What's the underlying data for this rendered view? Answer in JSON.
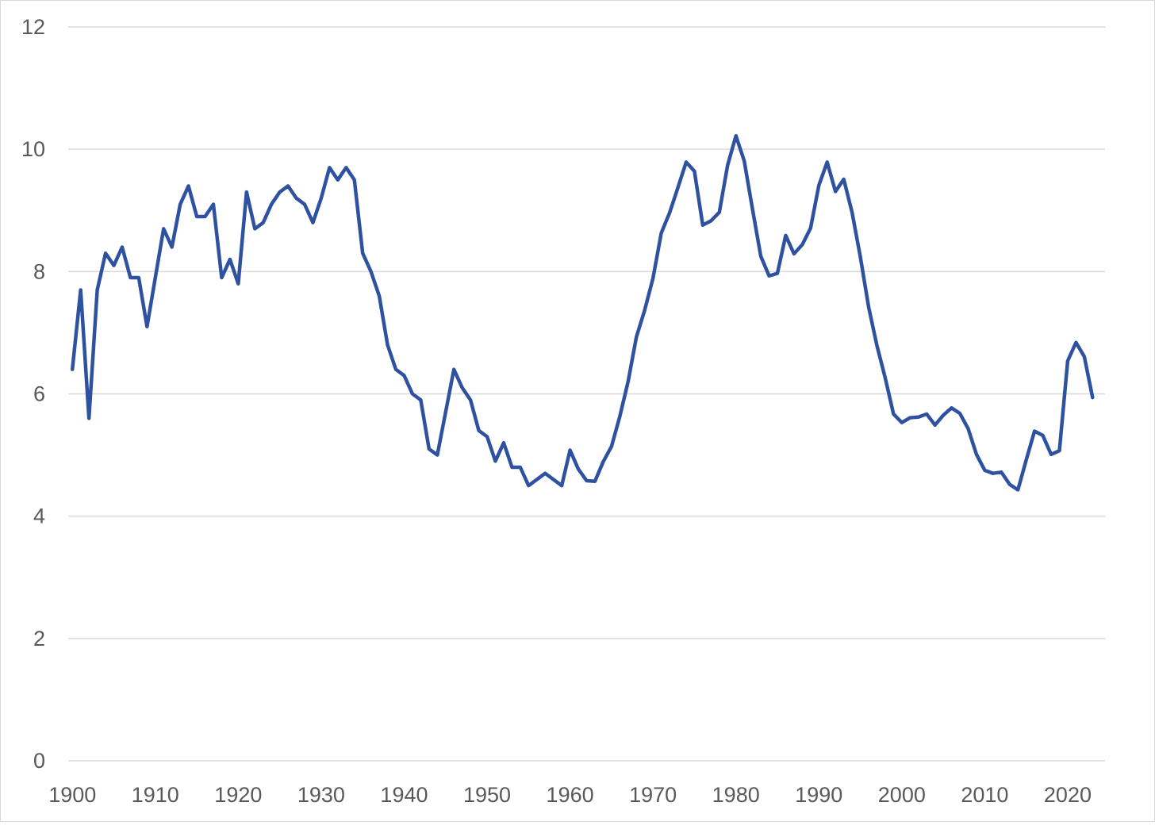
{
  "chart_data": {
    "type": "line",
    "title": "",
    "xlabel": "",
    "ylabel": "",
    "xlim": [
      1899.5,
      2024.5
    ],
    "ylim": [
      0,
      12
    ],
    "x_ticks": [
      "1900",
      "1910",
      "1920",
      "1930",
      "1940",
      "1950",
      "1960",
      "1970",
      "1980",
      "1990",
      "2000",
      "2010",
      "2020"
    ],
    "y_ticks": [
      "0",
      "2",
      "4",
      "6",
      "8",
      "10",
      "12"
    ],
    "grid": "horizontal",
    "legend": "none",
    "line_color": "#2f52a0",
    "gridline_color": "#d9d9d9",
    "series": [
      {
        "x": [
          1900,
          1901,
          1902,
          1903,
          1904,
          1905,
          1906,
          1907,
          1908,
          1909,
          1910,
          1911,
          1912,
          1913,
          1914,
          1915,
          1916,
          1917,
          1918,
          1919,
          1920,
          1921,
          1922,
          1923,
          1924,
          1925,
          1926,
          1927,
          1928,
          1929,
          1930,
          1931,
          1932,
          1933,
          1934,
          1935,
          1936,
          1937,
          1938,
          1939,
          1940,
          1941,
          1942,
          1943,
          1944,
          1945,
          1946,
          1947,
          1948,
          1949,
          1950,
          1951,
          1952,
          1953,
          1954,
          1955,
          1956,
          1957,
          1958,
          1959,
          1960,
          1961,
          1962,
          1963,
          1964,
          1965,
          1966,
          1967,
          1968,
          1969,
          1970,
          1971,
          1972,
          1973,
          1974,
          1975,
          1976,
          1977,
          1978,
          1979,
          1980,
          1981,
          1982,
          1983,
          1984,
          1985,
          1986,
          1987,
          1988,
          1989,
          1990,
          1991,
          1992,
          1993,
          1994,
          1995,
          1996,
          1997,
          1998,
          1999,
          2000,
          2001,
          2002,
          2003,
          2004,
          2005,
          2006,
          2007,
          2008,
          2009,
          2010,
          2011,
          2012,
          2013,
          2014,
          2015,
          2016,
          2017,
          2018,
          2019,
          2020,
          2021,
          2022,
          2023
        ],
        "values": [
          6.4,
          7.7,
          5.6,
          7.7,
          8.3,
          8.1,
          8.4,
          7.9,
          7.9,
          7.1,
          7.9,
          8.7,
          8.4,
          9.1,
          9.4,
          8.9,
          8.9,
          9.1,
          7.9,
          8.2,
          7.8,
          9.3,
          8.7,
          8.8,
          9.1,
          9.3,
          9.4,
          9.2,
          9.1,
          8.8,
          9.2,
          9.7,
          9.5,
          9.7,
          9.5,
          8.3,
          8.0,
          7.6,
          6.8,
          6.4,
          6.3,
          6.0,
          5.9,
          5.1,
          5.0,
          5.7,
          6.4,
          6.1,
          5.9,
          5.4,
          5.3,
          4.9,
          5.2,
          4.8,
          4.8,
          4.5,
          4.6,
          4.7,
          4.6,
          4.5,
          5.08,
          4.77,
          4.58,
          4.57,
          4.89,
          5.14,
          5.63,
          6.2,
          6.93,
          7.37,
          7.89,
          8.63,
          8.96,
          9.37,
          9.79,
          9.64,
          8.76,
          8.83,
          8.97,
          9.74,
          10.22,
          9.81,
          9.02,
          8.25,
          7.93,
          7.97,
          8.59,
          8.29,
          8.44,
          8.71,
          9.41,
          9.79,
          9.31,
          9.51,
          8.97,
          8.24,
          7.42,
          6.79,
          6.26,
          5.67,
          5.53,
          5.61,
          5.62,
          5.67,
          5.49,
          5.65,
          5.77,
          5.68,
          5.43,
          5.01,
          4.75,
          4.7,
          4.72,
          4.52,
          4.43,
          4.92,
          5.39,
          5.32,
          5.01,
          5.07,
          6.54,
          6.84,
          6.61,
          5.94
        ]
      }
    ]
  }
}
